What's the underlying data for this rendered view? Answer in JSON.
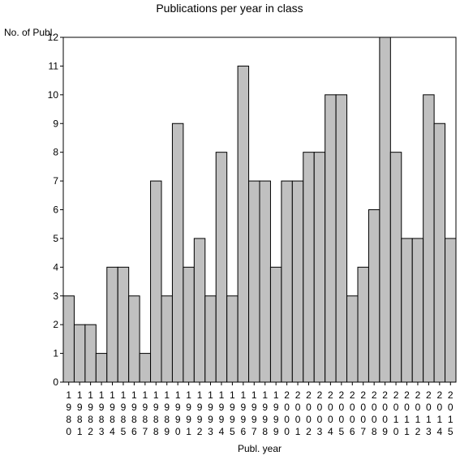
{
  "chart_data": {
    "type": "bar",
    "title": "Publications per year in class",
    "ylabel": "No. of Publ.",
    "xlabel": "Publ. year",
    "ylim": [
      0,
      12
    ],
    "yticks": [
      "0",
      "1",
      "2",
      "3",
      "4",
      "5",
      "6",
      "7",
      "8",
      "9",
      "10",
      "11",
      "12"
    ],
    "categories": [
      "1980",
      "1981",
      "1982",
      "1983",
      "1984",
      "1985",
      "1986",
      "1987",
      "1988",
      "1989",
      "1990",
      "1991",
      "1992",
      "1993",
      "1994",
      "1995",
      "1996",
      "1997",
      "1998",
      "1999",
      "2000",
      "2001",
      "2002",
      "2003",
      "2004",
      "2005",
      "2006",
      "2007",
      "2008",
      "2009",
      "2010",
      "2011",
      "2012",
      "2013",
      "2014",
      "2015"
    ],
    "values": [
      3,
      2,
      2,
      1,
      4,
      4,
      3,
      1,
      7,
      3,
      9,
      4,
      5,
      3,
      8,
      3,
      11,
      7,
      7,
      4,
      7,
      7,
      8,
      8,
      10,
      10,
      3,
      4,
      6,
      12,
      8,
      5,
      5,
      10,
      9,
      5
    ],
    "bar_color": "#c0c0c0",
    "bar_outline": "#000000",
    "grid": false,
    "legend": "none"
  }
}
